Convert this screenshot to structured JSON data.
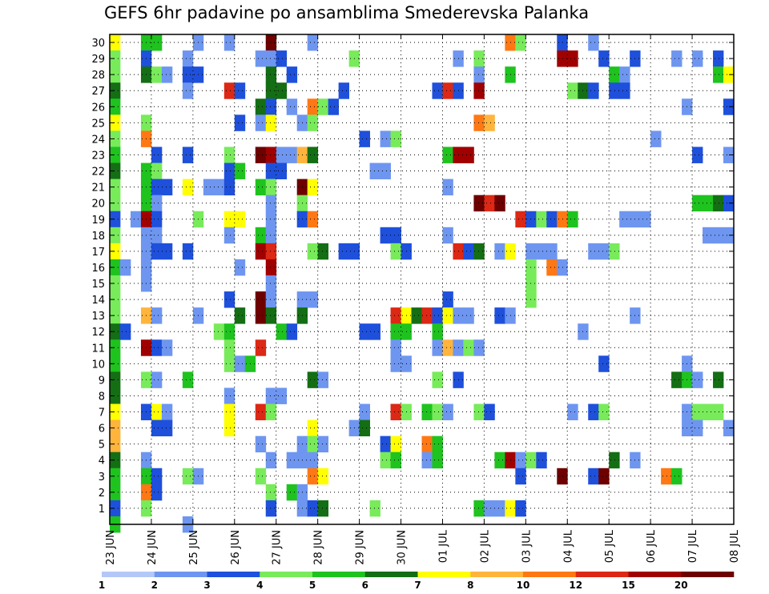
{
  "chart_data": {
    "type": "heatmap",
    "title": "GEFS 6hr padavine po ansamblima Smederevska Palanka",
    "x_tick_labels": [
      "23 JUN",
      "24 JUN",
      "25 JUN",
      "26 JUN",
      "27 JUN",
      "28 JUN",
      "29 JUN",
      "30 JUN",
      "01 JUL",
      "02 JUL",
      "03 JUL",
      "04 JUL",
      "05 JUL",
      "06 JUL",
      "07 JUL",
      "08 JUL"
    ],
    "y_tick_labels": [
      "1",
      "2",
      "3",
      "4",
      "5",
      "6",
      "7",
      "8",
      "9",
      "10",
      "11",
      "12",
      "13",
      "14",
      "15",
      "16",
      "17",
      "18",
      "19",
      "20",
      "21",
      "22",
      "23",
      "24",
      "25",
      "26",
      "27",
      "28",
      "29",
      "30"
    ],
    "time_steps": 60,
    "members": 30,
    "grid": true,
    "color_levels": [
      1,
      2,
      3,
      4,
      5,
      6,
      7,
      8,
      10,
      12,
      15,
      20
    ],
    "colorbar_labels": [
      "1",
      "2",
      "3",
      "4",
      "5",
      "6",
      "7",
      "8",
      "10",
      "12",
      "15",
      "20"
    ],
    "colors": [
      "#b4c8f8",
      "#6e96f0",
      "#1e50dc",
      "#78eb5a",
      "#1ec31e",
      "#146e14",
      "#ffff00",
      "#ffb43c",
      "#ff7814",
      "#dc2814",
      "#a00000",
      "#6e0000"
    ],
    "cells": [
      [
        30,
        0,
        6
      ],
      [
        30,
        3,
        4
      ],
      [
        30,
        4,
        4
      ],
      [
        30,
        8,
        1
      ],
      [
        30,
        11,
        1
      ],
      [
        30,
        15,
        11
      ],
      [
        30,
        19,
        1
      ],
      [
        30,
        38,
        8
      ],
      [
        30,
        39,
        3
      ],
      [
        30,
        43,
        2
      ],
      [
        30,
        46,
        1
      ],
      [
        29,
        0,
        3
      ],
      [
        29,
        3,
        2
      ],
      [
        29,
        7,
        1
      ],
      [
        29,
        14,
        1
      ],
      [
        29,
        15,
        1
      ],
      [
        29,
        16,
        2
      ],
      [
        29,
        23,
        3
      ],
      [
        29,
        33,
        1
      ],
      [
        29,
        35,
        3
      ],
      [
        29,
        43,
        10
      ],
      [
        29,
        44,
        10
      ],
      [
        29,
        47,
        2
      ],
      [
        29,
        50,
        2
      ],
      [
        29,
        54,
        1
      ],
      [
        29,
        56,
        1
      ],
      [
        29,
        58,
        2
      ],
      [
        28,
        0,
        3
      ],
      [
        28,
        3,
        5
      ],
      [
        28,
        4,
        3
      ],
      [
        28,
        5,
        1
      ],
      [
        28,
        7,
        2
      ],
      [
        28,
        8,
        2
      ],
      [
        28,
        15,
        5
      ],
      [
        28,
        17,
        2
      ],
      [
        28,
        35,
        1
      ],
      [
        28,
        38,
        4
      ],
      [
        28,
        48,
        4
      ],
      [
        28,
        49,
        1
      ],
      [
        28,
        58,
        4
      ],
      [
        28,
        59,
        6
      ],
      [
        27,
        0,
        5
      ],
      [
        27,
        7,
        1
      ],
      [
        27,
        11,
        9
      ],
      [
        27,
        12,
        2
      ],
      [
        27,
        15,
        5
      ],
      [
        27,
        16,
        5
      ],
      [
        27,
        22,
        2
      ],
      [
        27,
        31,
        2
      ],
      [
        27,
        32,
        9
      ],
      [
        27,
        33,
        2
      ],
      [
        27,
        35,
        10
      ],
      [
        27,
        44,
        3
      ],
      [
        27,
        45,
        5
      ],
      [
        27,
        46,
        2
      ],
      [
        27,
        48,
        2
      ],
      [
        27,
        49,
        2
      ],
      [
        26,
        0,
        4
      ],
      [
        26,
        14,
        5
      ],
      [
        26,
        15,
        2
      ],
      [
        26,
        17,
        1
      ],
      [
        26,
        19,
        8
      ],
      [
        26,
        20,
        3
      ],
      [
        26,
        21,
        2
      ],
      [
        26,
        55,
        1
      ],
      [
        26,
        59,
        2
      ],
      [
        25,
        0,
        6
      ],
      [
        25,
        3,
        3
      ],
      [
        25,
        12,
        2
      ],
      [
        25,
        14,
        1
      ],
      [
        25,
        15,
        6
      ],
      [
        25,
        18,
        1
      ],
      [
        25,
        19,
        3
      ],
      [
        25,
        35,
        8
      ],
      [
        25,
        36,
        7
      ],
      [
        24,
        0,
        3
      ],
      [
        24,
        3,
        8
      ],
      [
        24,
        24,
        2
      ],
      [
        24,
        26,
        1
      ],
      [
        24,
        27,
        3
      ],
      [
        24,
        52,
        1
      ],
      [
        23,
        0,
        4
      ],
      [
        23,
        4,
        2
      ],
      [
        23,
        7,
        2
      ],
      [
        23,
        11,
        3
      ],
      [
        23,
        14,
        11
      ],
      [
        23,
        15,
        10
      ],
      [
        23,
        16,
        1
      ],
      [
        23,
        17,
        1
      ],
      [
        23,
        18,
        7
      ],
      [
        23,
        19,
        5
      ],
      [
        23,
        32,
        4
      ],
      [
        23,
        33,
        10
      ],
      [
        23,
        34,
        10
      ],
      [
        23,
        56,
        2
      ],
      [
        23,
        59,
        1
      ],
      [
        22,
        0,
        5
      ],
      [
        22,
        3,
        4
      ],
      [
        22,
        4,
        3
      ],
      [
        22,
        11,
        2
      ],
      [
        22,
        12,
        4
      ],
      [
        22,
        15,
        2
      ],
      [
        22,
        16,
        2
      ],
      [
        22,
        25,
        1
      ],
      [
        22,
        26,
        1
      ],
      [
        21,
        0,
        3
      ],
      [
        21,
        3,
        4
      ],
      [
        21,
        4,
        2
      ],
      [
        21,
        5,
        2
      ],
      [
        21,
        7,
        6
      ],
      [
        21,
        9,
        1
      ],
      [
        21,
        10,
        1
      ],
      [
        21,
        11,
        2
      ],
      [
        21,
        14,
        4
      ],
      [
        21,
        15,
        3
      ],
      [
        21,
        18,
        11
      ],
      [
        21,
        19,
        6
      ],
      [
        21,
        32,
        1
      ],
      [
        20,
        0,
        3
      ],
      [
        20,
        3,
        4
      ],
      [
        20,
        4,
        1
      ],
      [
        20,
        15,
        1
      ],
      [
        20,
        18,
        3
      ],
      [
        20,
        35,
        11
      ],
      [
        20,
        36,
        9
      ],
      [
        20,
        37,
        11
      ],
      [
        20,
        56,
        4
      ],
      [
        20,
        57,
        4
      ],
      [
        20,
        58,
        5
      ],
      [
        20,
        59,
        2
      ],
      [
        19,
        0,
        2
      ],
      [
        19,
        2,
        1
      ],
      [
        19,
        3,
        10
      ],
      [
        19,
        4,
        2
      ],
      [
        19,
        8,
        3
      ],
      [
        19,
        11,
        6
      ],
      [
        19,
        12,
        6
      ],
      [
        19,
        15,
        1
      ],
      [
        19,
        18,
        2
      ],
      [
        19,
        19,
        8
      ],
      [
        19,
        39,
        9
      ],
      [
        19,
        40,
        2
      ],
      [
        19,
        41,
        3
      ],
      [
        19,
        42,
        2
      ],
      [
        19,
        43,
        8
      ],
      [
        19,
        44,
        4
      ],
      [
        19,
        49,
        1
      ],
      [
        19,
        50,
        1
      ],
      [
        19,
        51,
        1
      ],
      [
        18,
        0,
        3
      ],
      [
        18,
        3,
        1
      ],
      [
        18,
        4,
        1
      ],
      [
        18,
        11,
        1
      ],
      [
        18,
        14,
        4
      ],
      [
        18,
        15,
        1
      ],
      [
        18,
        26,
        2
      ],
      [
        18,
        27,
        2
      ],
      [
        18,
        32,
        1
      ],
      [
        18,
        57,
        1
      ],
      [
        18,
        58,
        1
      ],
      [
        18,
        59,
        1
      ],
      [
        17,
        0,
        6
      ],
      [
        17,
        3,
        1
      ],
      [
        17,
        4,
        2
      ],
      [
        17,
        5,
        2
      ],
      [
        17,
        7,
        2
      ],
      [
        17,
        14,
        10
      ],
      [
        17,
        15,
        9
      ],
      [
        17,
        19,
        3
      ],
      [
        17,
        20,
        5
      ],
      [
        17,
        22,
        2
      ],
      [
        17,
        23,
        2
      ],
      [
        17,
        27,
        3
      ],
      [
        17,
        28,
        2
      ],
      [
        17,
        33,
        9
      ],
      [
        17,
        34,
        2
      ],
      [
        17,
        35,
        5
      ],
      [
        17,
        37,
        1
      ],
      [
        17,
        38,
        6
      ],
      [
        17,
        40,
        1
      ],
      [
        17,
        41,
        1
      ],
      [
        17,
        42,
        1
      ],
      [
        17,
        46,
        1
      ],
      [
        17,
        47,
        1
      ],
      [
        17,
        48,
        3
      ],
      [
        16,
        0,
        4
      ],
      [
        16,
        1,
        1
      ],
      [
        16,
        3,
        1
      ],
      [
        16,
        12,
        1
      ],
      [
        16,
        15,
        10
      ],
      [
        16,
        40,
        3
      ],
      [
        16,
        42,
        8
      ],
      [
        16,
        43,
        1
      ],
      [
        15,
        0,
        3
      ],
      [
        15,
        3,
        1
      ],
      [
        15,
        15,
        1
      ],
      [
        15,
        40,
        3
      ],
      [
        14,
        0,
        3
      ],
      [
        14,
        11,
        2
      ],
      [
        14,
        14,
        11
      ],
      [
        14,
        15,
        1
      ],
      [
        14,
        18,
        1
      ],
      [
        14,
        19,
        1
      ],
      [
        14,
        32,
        2
      ],
      [
        14,
        40,
        3
      ],
      [
        13,
        0,
        3
      ],
      [
        13,
        3,
        7
      ],
      [
        13,
        4,
        1
      ],
      [
        13,
        8,
        1
      ],
      [
        13,
        12,
        5
      ],
      [
        13,
        14,
        11
      ],
      [
        13,
        15,
        5
      ],
      [
        13,
        18,
        5
      ],
      [
        13,
        27,
        9
      ],
      [
        13,
        28,
        6
      ],
      [
        13,
        29,
        5
      ],
      [
        13,
        30,
        9
      ],
      [
        13,
        31,
        2
      ],
      [
        13,
        32,
        6
      ],
      [
        13,
        33,
        1
      ],
      [
        13,
        34,
        1
      ],
      [
        13,
        37,
        2
      ],
      [
        13,
        38,
        1
      ],
      [
        13,
        50,
        1
      ],
      [
        12,
        0,
        5
      ],
      [
        12,
        1,
        2
      ],
      [
        12,
        10,
        3
      ],
      [
        12,
        11,
        4
      ],
      [
        12,
        16,
        4
      ],
      [
        12,
        17,
        2
      ],
      [
        12,
        24,
        2
      ],
      [
        12,
        25,
        2
      ],
      [
        12,
        27,
        4
      ],
      [
        12,
        28,
        4
      ],
      [
        12,
        31,
        4
      ],
      [
        12,
        45,
        1
      ],
      [
        11,
        0,
        4
      ],
      [
        11,
        3,
        10
      ],
      [
        11,
        4,
        2
      ],
      [
        11,
        5,
        1
      ],
      [
        11,
        11,
        3
      ],
      [
        11,
        14,
        9
      ],
      [
        11,
        27,
        1
      ],
      [
        11,
        31,
        1
      ],
      [
        11,
        32,
        7
      ],
      [
        11,
        33,
        1
      ],
      [
        11,
        34,
        3
      ],
      [
        11,
        35,
        1
      ],
      [
        10,
        0,
        4
      ],
      [
        10,
        11,
        3
      ],
      [
        10,
        12,
        1
      ],
      [
        10,
        13,
        4
      ],
      [
        10,
        27,
        1
      ],
      [
        10,
        28,
        1
      ],
      [
        10,
        47,
        2
      ],
      [
        10,
        55,
        1
      ],
      [
        9,
        0,
        5
      ],
      [
        9,
        3,
        3
      ],
      [
        9,
        4,
        1
      ],
      [
        9,
        7,
        4
      ],
      [
        9,
        19,
        5
      ],
      [
        9,
        20,
        1
      ],
      [
        9,
        31,
        3
      ],
      [
        9,
        33,
        2
      ],
      [
        9,
        54,
        5
      ],
      [
        9,
        55,
        4
      ],
      [
        9,
        56,
        1
      ],
      [
        9,
        58,
        5
      ],
      [
        8,
        0,
        5
      ],
      [
        8,
        11,
        1
      ],
      [
        8,
        15,
        1
      ],
      [
        8,
        16,
        1
      ],
      [
        7,
        0,
        6
      ],
      [
        7,
        3,
        2
      ],
      [
        7,
        4,
        6
      ],
      [
        7,
        5,
        1
      ],
      [
        7,
        11,
        6
      ],
      [
        7,
        14,
        9
      ],
      [
        7,
        15,
        3
      ],
      [
        7,
        24,
        1
      ],
      [
        7,
        27,
        9
      ],
      [
        7,
        28,
        3
      ],
      [
        7,
        30,
        4
      ],
      [
        7,
        31,
        3
      ],
      [
        7,
        32,
        1
      ],
      [
        7,
        35,
        3
      ],
      [
        7,
        36,
        2
      ],
      [
        7,
        44,
        1
      ],
      [
        7,
        46,
        2
      ],
      [
        7,
        47,
        3
      ],
      [
        7,
        55,
        1
      ],
      [
        7,
        56,
        3
      ],
      [
        7,
        57,
        3
      ],
      [
        7,
        58,
        3
      ],
      [
        6,
        0,
        7
      ],
      [
        6,
        4,
        2
      ],
      [
        6,
        5,
        2
      ],
      [
        6,
        11,
        6
      ],
      [
        6,
        19,
        6
      ],
      [
        6,
        23,
        1
      ],
      [
        6,
        24,
        5
      ],
      [
        6,
        55,
        1
      ],
      [
        6,
        56,
        1
      ],
      [
        6,
        59,
        1
      ],
      [
        5,
        0,
        7
      ],
      [
        5,
        14,
        1
      ],
      [
        5,
        18,
        1
      ],
      [
        5,
        19,
        3
      ],
      [
        5,
        20,
        1
      ],
      [
        5,
        26,
        2
      ],
      [
        5,
        27,
        6
      ],
      [
        5,
        30,
        8
      ],
      [
        5,
        31,
        4
      ],
      [
        4,
        0,
        5
      ],
      [
        4,
        3,
        1
      ],
      [
        4,
        15,
        1
      ],
      [
        4,
        17,
        1
      ],
      [
        4,
        18,
        1
      ],
      [
        4,
        19,
        1
      ],
      [
        4,
        26,
        3
      ],
      [
        4,
        27,
        4
      ],
      [
        4,
        30,
        1
      ],
      [
        4,
        31,
        4
      ],
      [
        4,
        37,
        4
      ],
      [
        4,
        38,
        10
      ],
      [
        4,
        39,
        1
      ],
      [
        4,
        40,
        3
      ],
      [
        4,
        41,
        2
      ],
      [
        4,
        48,
        5
      ],
      [
        4,
        50,
        1
      ],
      [
        3,
        0,
        4
      ],
      [
        3,
        3,
        4
      ],
      [
        3,
        4,
        2
      ],
      [
        3,
        7,
        3
      ],
      [
        3,
        8,
        1
      ],
      [
        3,
        14,
        3
      ],
      [
        3,
        19,
        8
      ],
      [
        3,
        20,
        6
      ],
      [
        3,
        39,
        2
      ],
      [
        3,
        43,
        11
      ],
      [
        3,
        46,
        2
      ],
      [
        3,
        47,
        11
      ],
      [
        3,
        53,
        8
      ],
      [
        3,
        54,
        4
      ],
      [
        2,
        0,
        4
      ],
      [
        2,
        3,
        8
      ],
      [
        2,
        4,
        2
      ],
      [
        2,
        15,
        3
      ],
      [
        2,
        17,
        4
      ],
      [
        2,
        18,
        1
      ],
      [
        1,
        0,
        2
      ],
      [
        1,
        3,
        3
      ],
      [
        1,
        15,
        2
      ],
      [
        1,
        18,
        1
      ],
      [
        1,
        19,
        2
      ],
      [
        1,
        20,
        5
      ],
      [
        1,
        25,
        3
      ],
      [
        1,
        35,
        4
      ],
      [
        1,
        36,
        1
      ],
      [
        1,
        37,
        1
      ],
      [
        1,
        38,
        6
      ],
      [
        1,
        39,
        2
      ],
      [
        0,
        0,
        4
      ],
      [
        0,
        7,
        1
      ]
    ]
  }
}
